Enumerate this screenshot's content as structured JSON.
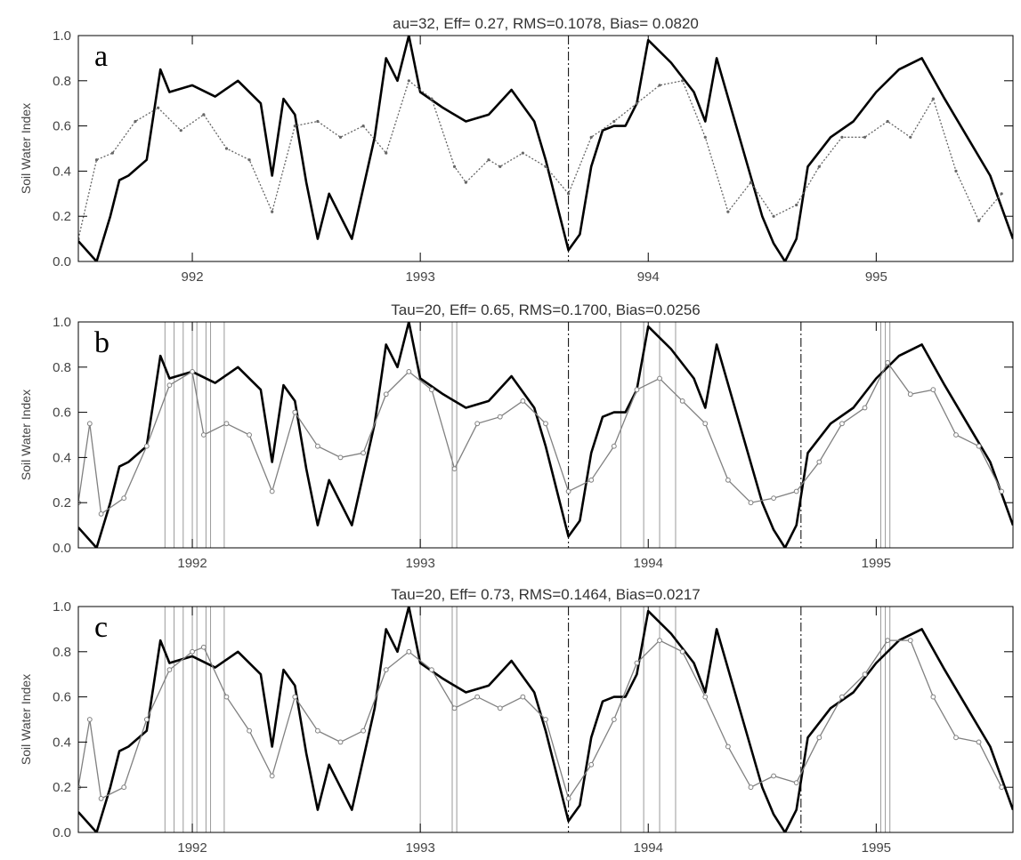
{
  "chart_data": [
    {
      "panel_label": "a",
      "type": "line",
      "title": "au=32, Eff= 0.27, RMS=0.1078, Bias= 0.0820",
      "xlabel": "",
      "ylabel": "Soil Water Index",
      "xlim": [
        1991.5,
        1995.6
      ],
      "ylim": [
        0,
        1
      ],
      "xticks": [
        {
          "value": 1992,
          "label": "992"
        },
        {
          "value": 1993,
          "label": "1993"
        },
        {
          "value": 1994,
          "label": "994"
        },
        {
          "value": 1995,
          "label": "995"
        }
      ],
      "yticks": [
        {
          "value": 0.0,
          "label": "0.0"
        },
        {
          "value": 0.2,
          "label": "0.2"
        },
        {
          "value": 0.4,
          "label": "0.4"
        },
        {
          "value": 0.6,
          "label": "0.6"
        },
        {
          "value": 0.8,
          "label": "0.8"
        },
        {
          "value": 1.0,
          "label": "1.0"
        }
      ],
      "vlines_dashdot": [
        1993.65
      ],
      "vlines_gray": [],
      "series": [
        {
          "style": "thick",
          "color": "#000000",
          "x": [
            1991.5,
            1991.58,
            1991.64,
            1991.68,
            1991.72,
            1991.8,
            1991.86,
            1991.9,
            1992.0,
            1992.1,
            1992.2,
            1992.3,
            1992.35,
            1992.4,
            1992.45,
            1992.5,
            1992.55,
            1992.6,
            1992.65,
            1992.7,
            1992.8,
            1992.85,
            1992.9,
            1992.95,
            1993.0,
            1993.1,
            1993.2,
            1993.3,
            1993.4,
            1993.5,
            1993.55,
            1993.6,
            1993.65,
            1993.7,
            1993.75,
            1993.8,
            1993.85,
            1993.9,
            1993.95,
            1994.0,
            1994.1,
            1994.2,
            1994.25,
            1994.3,
            1994.4,
            1994.5,
            1994.55,
            1994.6,
            1994.65,
            1994.7,
            1994.8,
            1994.9,
            1995.0,
            1995.1,
            1995.2,
            1995.3,
            1995.4,
            1995.5,
            1995.6
          ],
          "y": [
            0.09,
            0.0,
            0.2,
            0.36,
            0.38,
            0.45,
            0.85,
            0.75,
            0.78,
            0.73,
            0.8,
            0.7,
            0.38,
            0.72,
            0.65,
            0.35,
            0.1,
            0.3,
            0.2,
            0.1,
            0.55,
            0.9,
            0.8,
            1.0,
            0.75,
            0.68,
            0.62,
            0.65,
            0.76,
            0.62,
            0.45,
            0.25,
            0.05,
            0.12,
            0.42,
            0.58,
            0.6,
            0.6,
            0.7,
            0.98,
            0.88,
            0.75,
            0.62,
            0.9,
            0.55,
            0.2,
            0.08,
            0.0,
            0.1,
            0.42,
            0.55,
            0.62,
            0.75,
            0.85,
            0.9,
            0.72,
            0.55,
            0.38,
            0.1
          ]
        },
        {
          "style": "thin-dotted",
          "color": "#666666",
          "x": [
            1991.5,
            1991.58,
            1991.65,
            1991.75,
            1991.85,
            1991.95,
            1992.05,
            1992.15,
            1992.25,
            1992.35,
            1992.45,
            1992.55,
            1992.65,
            1992.75,
            1992.85,
            1992.95,
            1993.05,
            1993.15,
            1993.2,
            1993.3,
            1993.35,
            1993.45,
            1993.55,
            1993.65,
            1993.75,
            1993.85,
            1993.95,
            1994.05,
            1994.15,
            1994.25,
            1994.35,
            1994.45,
            1994.55,
            1994.65,
            1994.75,
            1994.85,
            1994.95,
            1995.05,
            1995.15,
            1995.25,
            1995.35,
            1995.45,
            1995.55
          ],
          "y": [
            0.1,
            0.45,
            0.48,
            0.62,
            0.68,
            0.58,
            0.65,
            0.5,
            0.45,
            0.22,
            0.6,
            0.62,
            0.55,
            0.6,
            0.48,
            0.8,
            0.72,
            0.42,
            0.35,
            0.45,
            0.42,
            0.48,
            0.42,
            0.3,
            0.55,
            0.62,
            0.7,
            0.78,
            0.8,
            0.55,
            0.22,
            0.35,
            0.2,
            0.25,
            0.42,
            0.55,
            0.55,
            0.62,
            0.55,
            0.72,
            0.4,
            0.18,
            0.3
          ]
        }
      ]
    },
    {
      "panel_label": "b",
      "type": "line",
      "title": "Tau=20, Eff= 0.65, RMS=0.1700, Bias=0.0256",
      "xlabel": "",
      "ylabel": "Soil Water Index",
      "xlim": [
        1991.5,
        1995.6
      ],
      "ylim": [
        0,
        1
      ],
      "xticks": [
        {
          "value": 1992,
          "label": "1992"
        },
        {
          "value": 1993,
          "label": "1993"
        },
        {
          "value": 1994,
          "label": "1994"
        },
        {
          "value": 1995,
          "label": "1995"
        }
      ],
      "yticks": [
        {
          "value": 0.0,
          "label": "0.0"
        },
        {
          "value": 0.2,
          "label": "0.2"
        },
        {
          "value": 0.4,
          "label": "0.4"
        },
        {
          "value": 0.6,
          "label": "0.6"
        },
        {
          "value": 0.8,
          "label": "0.8"
        },
        {
          "value": 1.0,
          "label": "1.0"
        }
      ],
      "vlines_dashdot": [
        1993.65,
        1994.67
      ],
      "vlines_gray": [
        1991.88,
        1991.92,
        1991.96,
        1992.0,
        1992.02,
        1992.06,
        1992.08,
        1992.14,
        1993.0,
        1993.14,
        1993.16,
        1993.88,
        1993.98,
        1994.05,
        1994.12,
        1995.02,
        1995.04,
        1995.06
      ],
      "series": [
        {
          "style": "thick",
          "color": "#000000",
          "x": [
            1991.5,
            1991.58,
            1991.64,
            1991.68,
            1991.72,
            1991.8,
            1991.86,
            1991.9,
            1992.0,
            1992.1,
            1992.2,
            1992.3,
            1992.35,
            1992.4,
            1992.45,
            1992.5,
            1992.55,
            1992.6,
            1992.65,
            1992.7,
            1992.8,
            1992.85,
            1992.9,
            1992.95,
            1993.0,
            1993.1,
            1993.2,
            1993.3,
            1993.4,
            1993.5,
            1993.55,
            1993.6,
            1993.65,
            1993.7,
            1993.75,
            1993.8,
            1993.85,
            1993.9,
            1993.95,
            1994.0,
            1994.1,
            1994.2,
            1994.25,
            1994.3,
            1994.4,
            1994.5,
            1994.55,
            1994.6,
            1994.65,
            1994.7,
            1994.8,
            1994.9,
            1995.0,
            1995.1,
            1995.2,
            1995.3,
            1995.4,
            1995.5,
            1995.6
          ],
          "y": [
            0.09,
            0.0,
            0.2,
            0.36,
            0.38,
            0.45,
            0.85,
            0.75,
            0.78,
            0.73,
            0.8,
            0.7,
            0.38,
            0.72,
            0.65,
            0.35,
            0.1,
            0.3,
            0.2,
            0.1,
            0.55,
            0.9,
            0.8,
            1.0,
            0.75,
            0.68,
            0.62,
            0.65,
            0.76,
            0.62,
            0.45,
            0.25,
            0.05,
            0.12,
            0.42,
            0.58,
            0.6,
            0.6,
            0.7,
            0.98,
            0.88,
            0.75,
            0.62,
            0.9,
            0.55,
            0.2,
            0.08,
            0.0,
            0.1,
            0.42,
            0.55,
            0.62,
            0.75,
            0.85,
            0.9,
            0.72,
            0.55,
            0.38,
            0.1
          ]
        },
        {
          "style": "thin-circles",
          "color": "#808080",
          "x": [
            1991.5,
            1991.55,
            1991.6,
            1991.7,
            1991.8,
            1991.9,
            1992.0,
            1992.05,
            1992.15,
            1992.25,
            1992.35,
            1992.45,
            1992.55,
            1992.65,
            1992.75,
            1992.85,
            1992.95,
            1993.05,
            1993.15,
            1993.25,
            1993.35,
            1993.45,
            1993.55,
            1993.65,
            1993.75,
            1993.85,
            1993.95,
            1994.05,
            1994.15,
            1994.25,
            1994.35,
            1994.45,
            1994.55,
            1994.65,
            1994.75,
            1994.85,
            1994.95,
            1995.05,
            1995.15,
            1995.25,
            1995.35,
            1995.45,
            1995.55
          ],
          "y": [
            0.2,
            0.55,
            0.15,
            0.22,
            0.45,
            0.72,
            0.78,
            0.5,
            0.55,
            0.5,
            0.25,
            0.6,
            0.45,
            0.4,
            0.42,
            0.68,
            0.78,
            0.7,
            0.35,
            0.55,
            0.58,
            0.65,
            0.55,
            0.25,
            0.3,
            0.45,
            0.7,
            0.75,
            0.65,
            0.55,
            0.3,
            0.2,
            0.22,
            0.25,
            0.38,
            0.55,
            0.62,
            0.82,
            0.68,
            0.7,
            0.5,
            0.45,
            0.25
          ]
        }
      ]
    },
    {
      "panel_label": "c",
      "type": "line",
      "title": "Tau=20, Eff= 0.73, RMS=0.1464, Bias=0.0217",
      "xlabel": "",
      "ylabel": "Soil Water Index",
      "xlim": [
        1991.5,
        1995.6
      ],
      "ylim": [
        0,
        1
      ],
      "xticks": [
        {
          "value": 1992,
          "label": "1992"
        },
        {
          "value": 1993,
          "label": "1993"
        },
        {
          "value": 1994,
          "label": "1994"
        },
        {
          "value": 1995,
          "label": "1995"
        }
      ],
      "yticks": [
        {
          "value": 0.0,
          "label": "0.0"
        },
        {
          "value": 0.2,
          "label": "0.2"
        },
        {
          "value": 0.4,
          "label": "0.4"
        },
        {
          "value": 0.6,
          "label": "0.6"
        },
        {
          "value": 0.8,
          "label": "0.8"
        },
        {
          "value": 1.0,
          "label": "1.0"
        }
      ],
      "vlines_dashdot": [
        1993.65,
        1994.67
      ],
      "vlines_gray": [
        1991.88,
        1991.92,
        1991.96,
        1992.0,
        1992.02,
        1992.06,
        1992.08,
        1992.14,
        1993.0,
        1993.14,
        1993.16,
        1993.88,
        1993.98,
        1994.05,
        1994.12,
        1995.02,
        1995.04,
        1995.06
      ],
      "series": [
        {
          "style": "thick",
          "color": "#000000",
          "x": [
            1991.5,
            1991.58,
            1991.64,
            1991.68,
            1991.72,
            1991.8,
            1991.86,
            1991.9,
            1992.0,
            1992.1,
            1992.2,
            1992.3,
            1992.35,
            1992.4,
            1992.45,
            1992.5,
            1992.55,
            1992.6,
            1992.65,
            1992.7,
            1992.8,
            1992.85,
            1992.9,
            1992.95,
            1993.0,
            1993.1,
            1993.2,
            1993.3,
            1993.4,
            1993.5,
            1993.55,
            1993.6,
            1993.65,
            1993.7,
            1993.75,
            1993.8,
            1993.85,
            1993.9,
            1993.95,
            1994.0,
            1994.1,
            1994.2,
            1994.25,
            1994.3,
            1994.4,
            1994.5,
            1994.55,
            1994.6,
            1994.65,
            1994.7,
            1994.8,
            1994.9,
            1995.0,
            1995.1,
            1995.2,
            1995.3,
            1995.4,
            1995.5,
            1995.6
          ],
          "y": [
            0.09,
            0.0,
            0.2,
            0.36,
            0.38,
            0.45,
            0.85,
            0.75,
            0.78,
            0.73,
            0.8,
            0.7,
            0.38,
            0.72,
            0.65,
            0.35,
            0.1,
            0.3,
            0.2,
            0.1,
            0.55,
            0.9,
            0.8,
            1.0,
            0.75,
            0.68,
            0.62,
            0.65,
            0.76,
            0.62,
            0.45,
            0.25,
            0.05,
            0.12,
            0.42,
            0.58,
            0.6,
            0.6,
            0.7,
            0.98,
            0.88,
            0.75,
            0.62,
            0.9,
            0.55,
            0.2,
            0.08,
            0.0,
            0.1,
            0.42,
            0.55,
            0.62,
            0.75,
            0.85,
            0.9,
            0.72,
            0.55,
            0.38,
            0.1
          ]
        },
        {
          "style": "thin-circles",
          "color": "#808080",
          "x": [
            1991.5,
            1991.55,
            1991.6,
            1991.7,
            1991.8,
            1991.9,
            1992.0,
            1992.05,
            1992.15,
            1992.25,
            1992.35,
            1992.45,
            1992.55,
            1992.65,
            1992.75,
            1992.85,
            1992.95,
            1993.05,
            1993.15,
            1993.25,
            1993.35,
            1993.45,
            1993.55,
            1993.65,
            1993.75,
            1993.85,
            1993.95,
            1994.05,
            1994.15,
            1994.25,
            1994.35,
            1994.45,
            1994.55,
            1994.65,
            1994.75,
            1994.85,
            1994.95,
            1995.05,
            1995.15,
            1995.25,
            1995.35,
            1995.45,
            1995.55
          ],
          "y": [
            0.2,
            0.5,
            0.15,
            0.2,
            0.5,
            0.72,
            0.8,
            0.82,
            0.6,
            0.45,
            0.25,
            0.6,
            0.45,
            0.4,
            0.45,
            0.72,
            0.8,
            0.72,
            0.55,
            0.6,
            0.55,
            0.6,
            0.5,
            0.15,
            0.3,
            0.5,
            0.75,
            0.85,
            0.8,
            0.6,
            0.38,
            0.2,
            0.25,
            0.22,
            0.42,
            0.6,
            0.7,
            0.85,
            0.85,
            0.6,
            0.42,
            0.4,
            0.2
          ]
        }
      ]
    }
  ]
}
